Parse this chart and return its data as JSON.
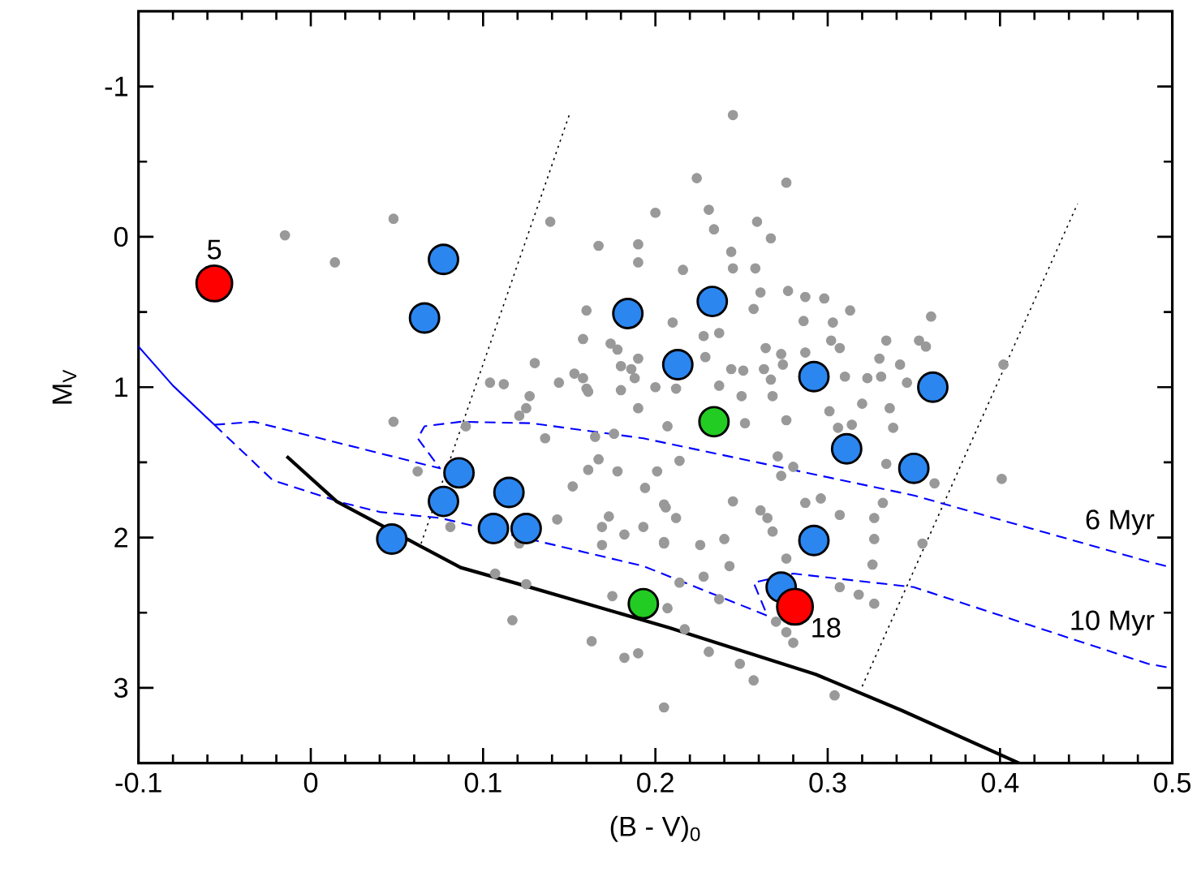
{
  "chart_data": {
    "type": "scatter",
    "xlabel": "(B - V)$_{0}$",
    "ylabel": "M$_{V}$",
    "xlim": [
      -0.1,
      0.5
    ],
    "xticks": [
      -0.1,
      0,
      0.1,
      0.2,
      0.3,
      0.4,
      0.5
    ],
    "ylim": [
      3.5,
      -1.5
    ],
    "yticks": [
      -1,
      0,
      1,
      2,
      3
    ],
    "series": [
      {
        "marker": "circle",
        "color": "#999999",
        "x": [
          -0.015,
          0.014,
          0.048,
          0.139,
          0.167,
          0.19,
          0.19,
          0.2,
          0.16,
          0.158,
          0.174,
          0.178,
          0.18,
          0.19,
          0.186,
          0.188,
          0.13,
          0.104,
          0.112,
          0.144,
          0.153,
          0.158,
          0.16,
          0.127,
          0.18,
          0.2,
          0.245,
          0.224,
          0.276,
          0.231,
          0.234,
          0.259,
          0.267,
          0.244,
          0.245,
          0.258,
          0.216,
          0.261,
          0.277,
          0.257,
          0.287,
          0.298,
          0.313,
          0.286,
          0.303,
          0.21,
          0.228,
          0.237,
          0.302,
          0.334,
          0.36,
          0.353,
          0.357,
          0.264,
          0.287,
          0.307,
          0.273,
          0.33,
          0.342,
          0.229,
          0.244,
          0.251,
          0.263,
          0.274,
          0.31,
          0.323,
          0.331,
          0.346,
          0.237,
          0.267,
          0.212,
          0.402,
          0.048,
          0.062,
          0.09,
          0.081,
          0.121,
          0.125,
          0.136,
          0.143,
          0.152,
          0.161,
          0.167,
          0.165,
          0.178,
          0.173,
          0.169,
          0.169,
          0.182,
          0.19,
          0.194,
          0.193,
          0.201,
          0.205,
          0.205,
          0.207,
          0.121,
          0.107,
          0.125,
          0.117,
          0.175,
          0.163,
          0.182,
          0.19,
          0.205,
          0.176,
          0.161,
          0.207,
          0.214,
          0.206,
          0.212,
          0.205,
          0.226,
          0.245,
          0.261,
          0.265,
          0.268,
          0.25,
          0.252,
          0.268,
          0.276,
          0.271,
          0.273,
          0.28,
          0.287,
          0.296,
          0.301,
          0.306,
          0.314,
          0.32,
          0.336,
          0.338,
          0.334,
          0.332,
          0.327,
          0.307,
          0.327,
          0.326,
          0.355,
          0.362,
          0.401,
          0.24,
          0.243,
          0.276,
          0.228,
          0.214,
          0.237,
          0.217,
          0.27,
          0.276,
          0.307,
          0.318,
          0.327,
          0.231,
          0.249,
          0.257,
          0.304,
          0.28
        ],
        "values": [
          -0.01,
          0.17,
          -0.12,
          -0.1,
          0.06,
          0.05,
          0.17,
          -0.16,
          0.49,
          0.68,
          0.71,
          0.75,
          0.86,
          0.81,
          0.88,
          0.94,
          0.84,
          0.97,
          0.98,
          0.97,
          0.91,
          0.94,
          1.01,
          1.06,
          1.02,
          1.0,
          -0.81,
          -0.39,
          -0.36,
          -0.18,
          -0.05,
          -0.1,
          0.01,
          0.1,
          0.21,
          0.21,
          0.22,
          0.37,
          0.36,
          0.48,
          0.4,
          0.41,
          0.49,
          0.56,
          0.57,
          0.57,
          0.66,
          0.64,
          0.69,
          0.69,
          0.53,
          0.69,
          0.73,
          0.74,
          0.77,
          0.74,
          0.78,
          0.81,
          0.85,
          0.8,
          0.88,
          0.89,
          0.88,
          0.85,
          0.93,
          0.94,
          0.93,
          0.97,
          0.99,
          0.95,
          1.01,
          0.85,
          1.23,
          1.56,
          1.26,
          1.93,
          1.19,
          1.14,
          1.34,
          1.88,
          1.66,
          1.55,
          1.48,
          1.33,
          1.56,
          1.86,
          1.93,
          2.05,
          1.98,
          1.14,
          1.67,
          1.93,
          1.56,
          1.78,
          2.04,
          2.47,
          2.04,
          2.24,
          2.31,
          2.55,
          2.39,
          2.69,
          2.8,
          2.77,
          3.13,
          1.31,
          1.03,
          1.26,
          1.49,
          1.8,
          1.87,
          2.03,
          2.05,
          1.76,
          1.82,
          1.87,
          1.96,
          1.06,
          1.24,
          1.06,
          1.22,
          1.46,
          1.59,
          1.53,
          1.77,
          1.74,
          1.16,
          1.27,
          1.25,
          1.11,
          1.14,
          1.27,
          1.51,
          1.77,
          1.87,
          1.85,
          2.01,
          2.18,
          2.04,
          1.64,
          1.61,
          2.01,
          2.19,
          2.14,
          2.26,
          2.3,
          2.41,
          2.61,
          2.56,
          2.63,
          2.33,
          2.38,
          2.44,
          2.76,
          2.84,
          2.95,
          3.05,
          2.7
        ]
      },
      {
        "type": "line",
        "line_style": "dotted",
        "color": "#000000",
        "x": [
          0.064,
          0.15
        ],
        "values": [
          2.04,
          -0.81
        ]
      },
      {
        "type": "line",
        "line_style": "dotted",
        "color": "#000000",
        "x": [
          0.32,
          0.445
        ],
        "values": [
          2.99,
          -0.22
        ]
      },
      {
        "type": "line",
        "line_style": "solid",
        "color": "#0000ff",
        "x": [
          -0.1,
          -0.08,
          -0.056
        ],
        "values": [
          0.73,
          0.99,
          1.25
        ]
      },
      {
        "type": "line",
        "line_style": "dashed",
        "color": "#0000ff",
        "name": "6 Myr",
        "x": [
          -0.056,
          -0.033,
          0.075,
          0.062,
          0.066,
          0.087,
          0.128,
          0.193,
          0.35,
          0.486,
          0.5
        ],
        "values": [
          1.25,
          1.23,
          1.54,
          1.34,
          1.26,
          1.23,
          1.24,
          1.34,
          1.72,
          2.16,
          2.2
        ]
      },
      {
        "type": "line",
        "line_style": "dashed",
        "color": "#0000ff",
        "name": "10 Myr",
        "x": [
          -0.056,
          -0.022,
          0.019,
          0.04,
          0.075,
          0.118,
          0.193,
          0.265,
          0.257,
          0.28,
          0.35,
          0.486,
          0.5
        ],
        "values": [
          1.25,
          1.62,
          1.77,
          1.83,
          1.87,
          null,
          2.19,
          2.52,
          2.3,
          2.24,
          2.33,
          2.84,
          2.87
        ]
      },
      {
        "type": "line",
        "line_style": "solid",
        "color": "#000000",
        "x": [
          -0.014,
          0.015,
          0.047,
          0.087,
          0.124,
          0.193,
          0.208,
          0.293,
          0.343,
          0.411
        ],
        "values": [
          1.46,
          1.76,
          null,
          2.2,
          2.32,
          null,
          2.6,
          2.91,
          3.15,
          3.5
        ]
      },
      {
        "marker": "circle",
        "color": "#2b86f0",
        "x": [
          0.077,
          0.066,
          0.184,
          0.233,
          0.213,
          0.292,
          0.361,
          0.311,
          0.35,
          0.292,
          0.273,
          0.086,
          0.077,
          0.115,
          0.106,
          0.125,
          0.047
        ],
        "values": [
          0.15,
          0.54,
          0.51,
          0.43,
          0.85,
          0.93,
          1.0,
          1.41,
          1.54,
          2.02,
          2.33,
          1.57,
          1.76,
          1.7,
          1.94,
          1.94,
          2.01
        ]
      },
      {
        "marker": "circle",
        "color": "#22cc22",
        "x": [
          0.234,
          0.193
        ],
        "values": [
          1.23,
          2.44
        ]
      },
      {
        "marker": "circle",
        "color": "#ff0000",
        "x": [
          -0.056,
          0.281
        ],
        "values": [
          0.31,
          2.46
        ]
      }
    ],
    "annotations": [
      {
        "text": "5",
        "x": -0.056,
        "y": 0.31
      },
      {
        "text": "18",
        "x": 0.281,
        "y": 2.46
      }
    ]
  }
}
